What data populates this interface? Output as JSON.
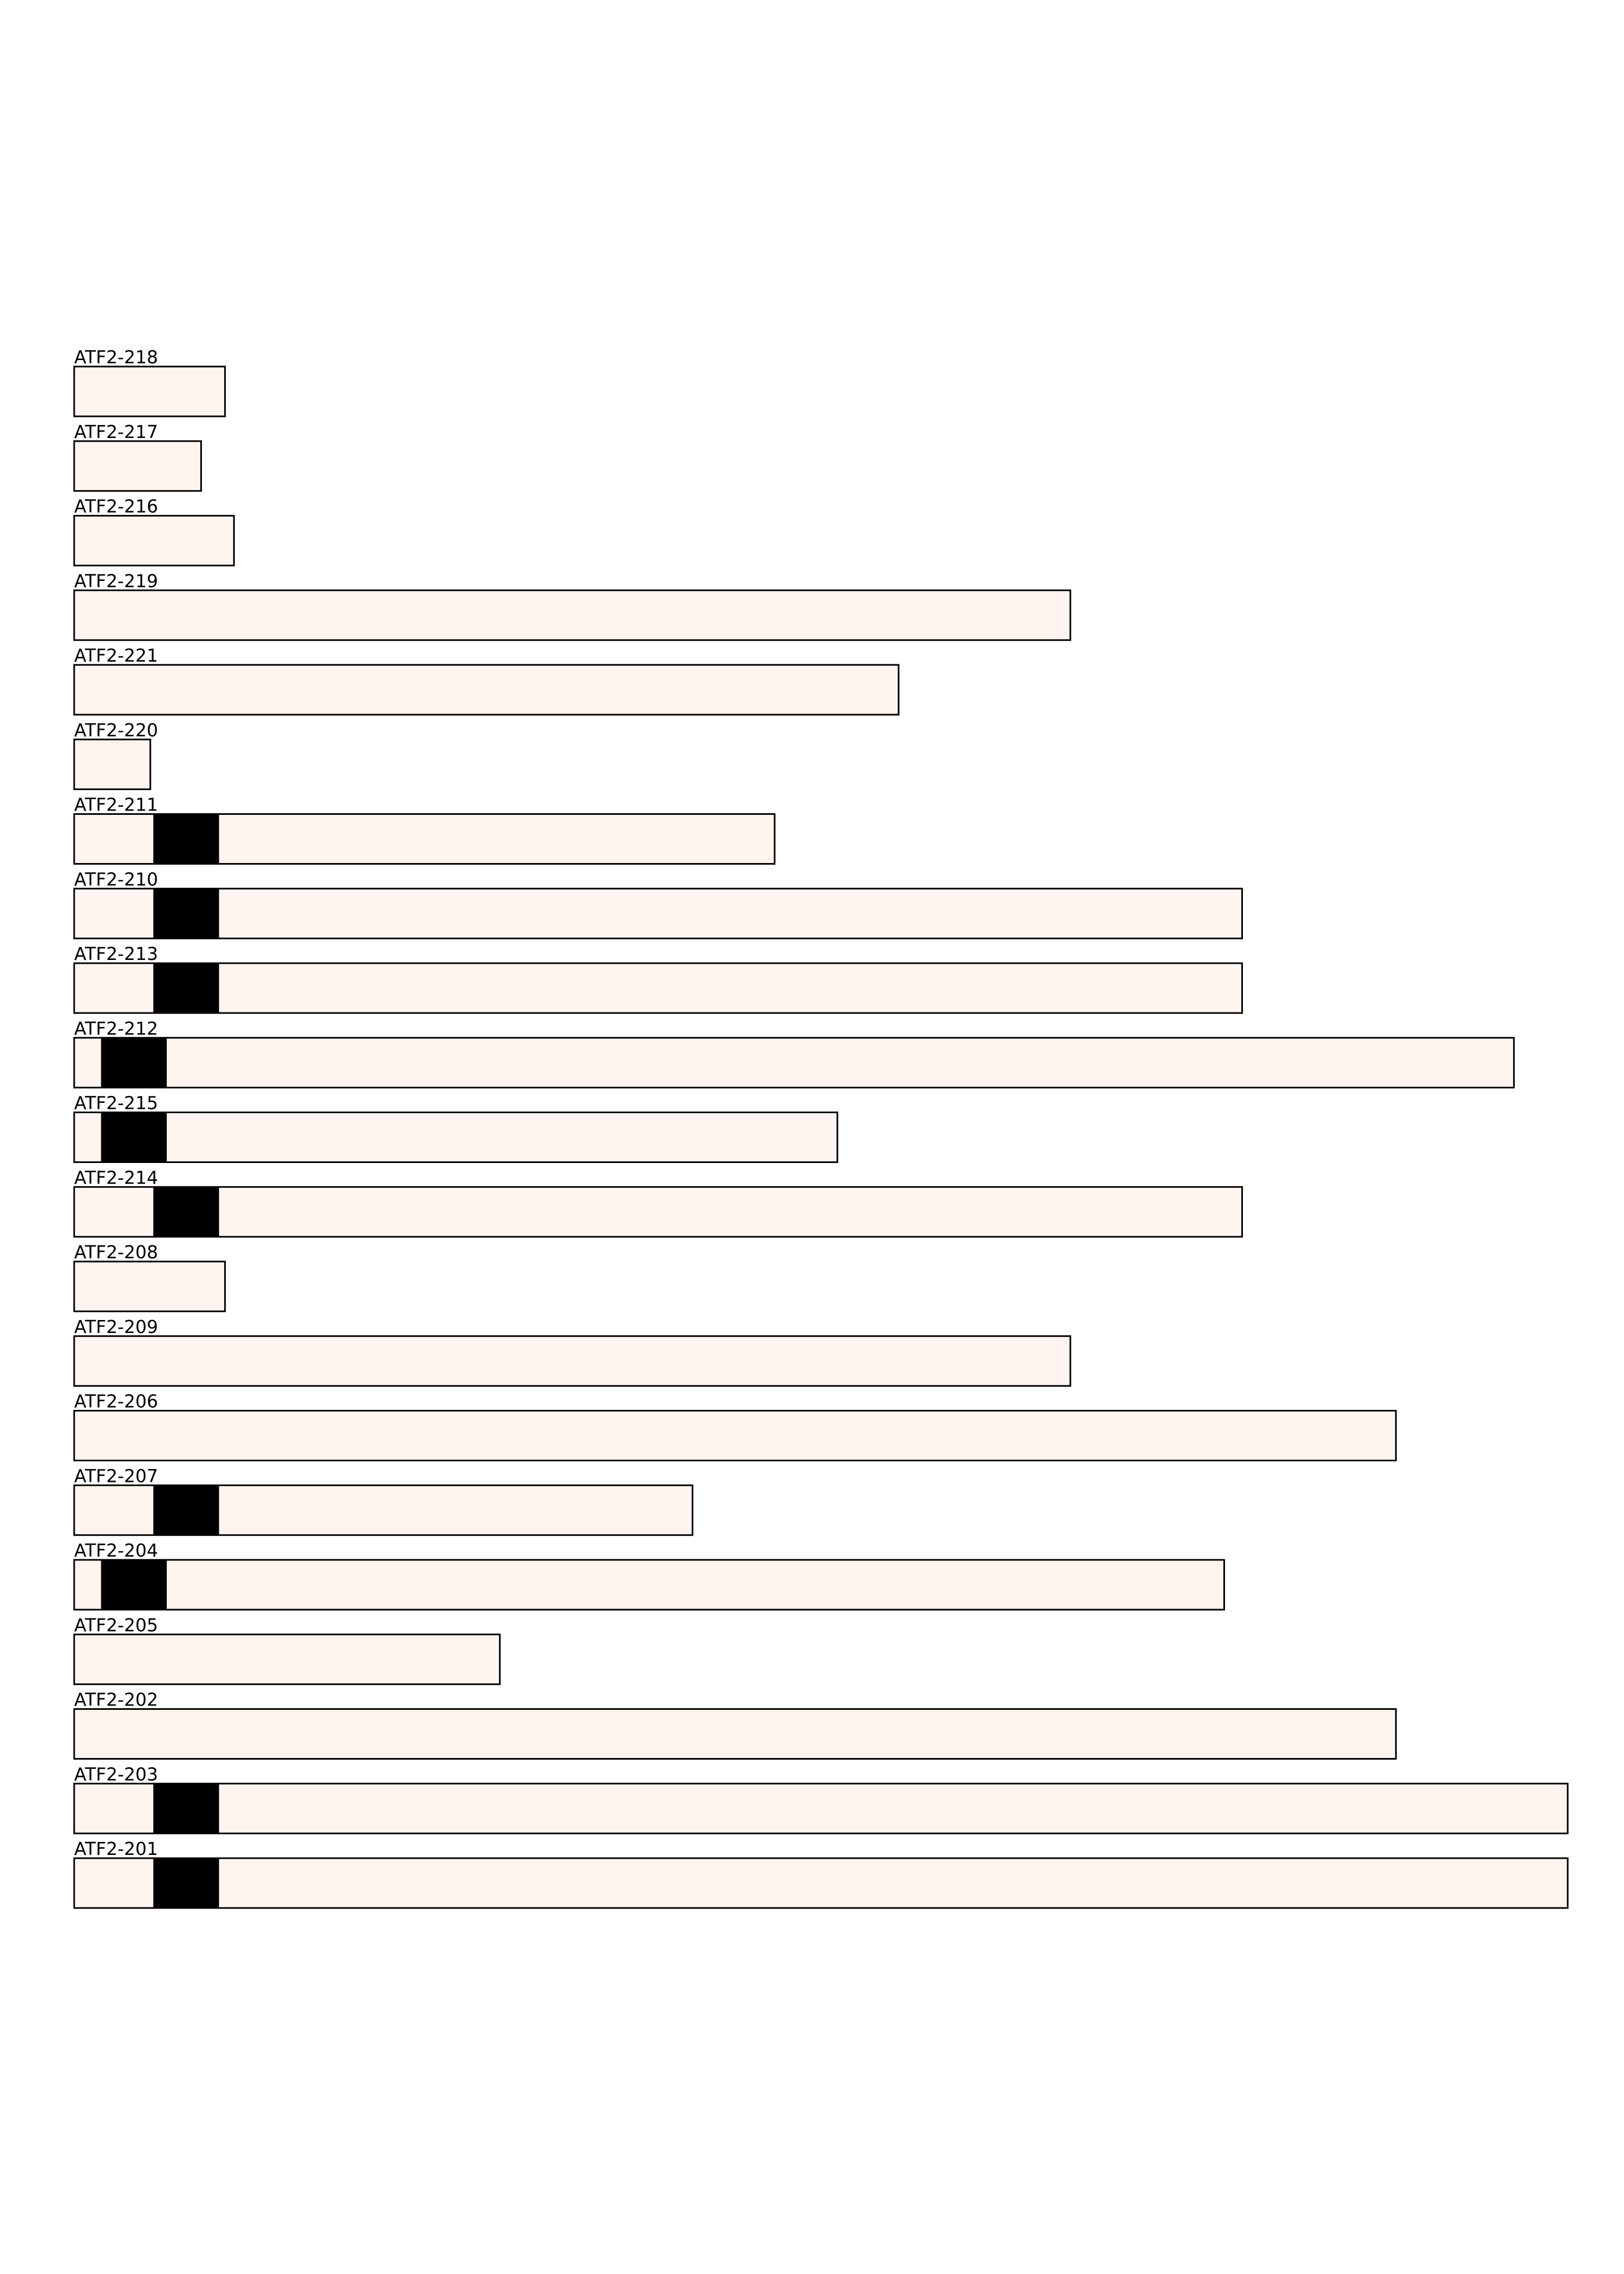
{
  "colors": {
    "transcript_fill": "#fff4ef",
    "outline": "#000000",
    "feature_fill": "#000000"
  },
  "units": "percent of longest transcript",
  "transcripts": [
    {
      "name": "ATF2-218",
      "length": 10.1,
      "features": []
    },
    {
      "name": "ATF2-217",
      "length": 8.5,
      "features": []
    },
    {
      "name": "ATF2-216",
      "length": 10.7,
      "features": []
    },
    {
      "name": "ATF2-219",
      "length": 66.7,
      "features": []
    },
    {
      "name": "ATF2-221",
      "length": 55.2,
      "features": []
    },
    {
      "name": "ATF2-220",
      "length": 5.1,
      "features": []
    },
    {
      "name": "ATF2-211",
      "length": 46.9,
      "features": [
        [
          5.3,
          9.7
        ]
      ]
    },
    {
      "name": "ATF2-210",
      "length": 78.2,
      "features": [
        [
          5.3,
          9.7
        ]
      ]
    },
    {
      "name": "ATF2-213",
      "length": 78.2,
      "features": [
        [
          5.3,
          9.7
        ]
      ]
    },
    {
      "name": "ATF2-212",
      "length": 96.4,
      "features": [
        [
          1.8,
          6.2
        ]
      ]
    },
    {
      "name": "ATF2-215",
      "length": 51.1,
      "features": [
        [
          1.8,
          6.2
        ]
      ]
    },
    {
      "name": "ATF2-214",
      "length": 78.2,
      "features": [
        [
          5.3,
          9.7
        ]
      ]
    },
    {
      "name": "ATF2-208",
      "length": 10.1,
      "features": []
    },
    {
      "name": "ATF2-209",
      "length": 66.7,
      "features": []
    },
    {
      "name": "ATF2-206",
      "length": 88.5,
      "features": []
    },
    {
      "name": "ATF2-207",
      "length": 41.4,
      "features": [
        [
          5.3,
          9.7
        ]
      ]
    },
    {
      "name": "ATF2-204",
      "length": 77.0,
      "features": [
        [
          1.8,
          6.2
        ]
      ]
    },
    {
      "name": "ATF2-205",
      "length": 28.5,
      "features": []
    },
    {
      "name": "ATF2-202",
      "length": 88.5,
      "features": []
    },
    {
      "name": "ATF2-203",
      "length": 100,
      "features": [
        [
          5.3,
          9.7
        ]
      ]
    },
    {
      "name": "ATF2-201",
      "length": 100,
      "features": [
        [
          5.3,
          9.7
        ]
      ]
    }
  ]
}
